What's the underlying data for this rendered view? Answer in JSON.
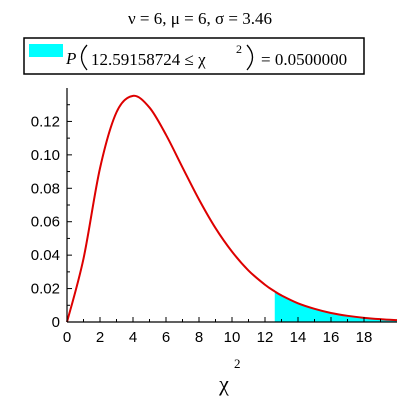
{
  "chart_data": {
    "type": "area",
    "title": "ν = 6, μ = 6, σ = 3.46",
    "legend": {
      "prefix": "P",
      "expression": "12.59158724 ≤ χ",
      "exponent": "2",
      "result": "= 0.0500000",
      "swatch_color": "#00ffff"
    },
    "xlabel": "χ",
    "xlabel_exponent": "2",
    "ylabel": "",
    "degrees_of_freedom": 6,
    "critical_value": 12.59158724,
    "xlim": [
      0,
      20
    ],
    "ylim": [
      0,
      0.14
    ],
    "x_ticks": [
      0,
      2,
      4,
      6,
      8,
      10,
      12,
      14,
      16,
      18
    ],
    "y_ticks": [
      0,
      0.02,
      0.04,
      0.06,
      0.08,
      0.1,
      0.12
    ],
    "y_tick_labels": [
      "0",
      "0.02",
      "0.04",
      "0.06",
      "0.08",
      "0.10",
      "0.12"
    ],
    "grid": false,
    "series": [
      {
        "x": [
          0,
          1,
          2,
          3,
          4,
          5,
          6,
          7,
          8,
          9,
          10,
          11,
          12,
          12.59,
          13,
          14,
          15,
          16,
          17,
          18,
          19,
          20
        ],
        "y": [
          0,
          0.0379,
          0.092,
          0.1255,
          0.1353,
          0.1283,
          0.112,
          0.0925,
          0.0733,
          0.0562,
          0.0421,
          0.0308,
          0.0223,
          0.0183,
          0.0159,
          0.0112,
          0.0079,
          0.0054,
          0.0037,
          0.0025,
          0.0017,
          0.0011
        ],
        "color": "#dd0000"
      }
    ],
    "shaded_region": {
      "from": 12.59158724,
      "to": 20,
      "probability": 0.05,
      "color": "#00ffff"
    }
  }
}
